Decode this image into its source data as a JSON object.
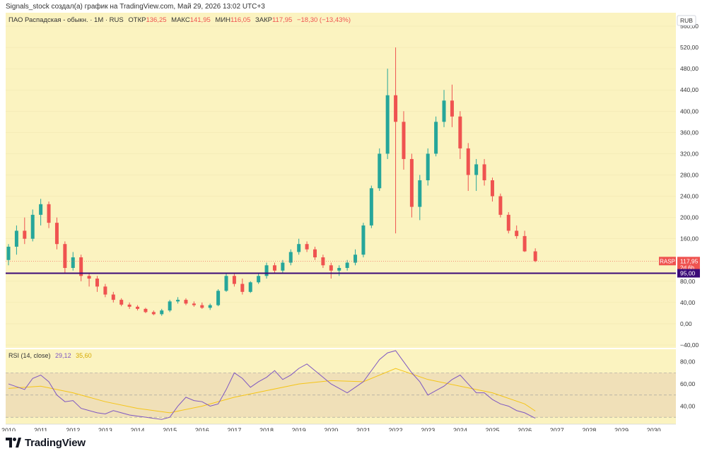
{
  "header": {
    "attribution": "Signals_stock создал(а) график на TradingView.com, Май 29, 2026 13:02 UTC+3"
  },
  "legend": {
    "symbol": "ПАО Распадская - обыкн. · 1M · RUS",
    "open_label": "ОТКР",
    "open_value": "136,25",
    "high_label": "МАКС",
    "high_value": "141,95",
    "low_label": "МИН",
    "low_value": "116,05",
    "close_label": "ЗАКР",
    "close_value": "117,95",
    "change": "−18,30 (−13,43%)"
  },
  "price_axis": {
    "currency": "RUB",
    "ticks": [
      "560,00",
      "520,00",
      "480,00",
      "440,00",
      "400,00",
      "360,00",
      "320,00",
      "280,00",
      "240,00",
      "200,00",
      "160,00",
      "80,00",
      "40,00",
      "0,00",
      "−40,00"
    ]
  },
  "badges": {
    "ticker": "RASP",
    "last_price": "117,95",
    "countdown": "2d 6h",
    "level_label": "95,00"
  },
  "rsi": {
    "label": "RSI (14, close)",
    "value": "29,12",
    "ma_value": "35,60",
    "ticks": [
      "80,00",
      "60,00",
      "40,00"
    ]
  },
  "time_axis": {
    "years": [
      "2010",
      "2011",
      "2012",
      "2013",
      "2014",
      "2015",
      "2016",
      "2017",
      "2018",
      "2019",
      "2020",
      "2021",
      "2022",
      "2023",
      "2024",
      "2025",
      "2026",
      "2027",
      "2028",
      "2029",
      "2030"
    ]
  },
  "footer": {
    "brand": "TradingView"
  },
  "colors": {
    "background": "#fbf3c0",
    "up": "#26a69a",
    "down": "#ef5350",
    "level_line": "#3b0a78",
    "rsi_line": "#7e57c2",
    "rsi_ma": "#f5c518",
    "rsi_band": "#f0e0b8"
  },
  "chart_data": [
    {
      "type": "candlestick",
      "title": "ПАО Распадская - обыкн. · 1M · RUS",
      "ylim": [
        -40,
        580
      ],
      "horizontal_line": 95,
      "x_key": "time",
      "series": [
        {
          "name": "RASP",
          "points": [
            [
              2010.0,
              120,
              150,
              110,
              145
            ],
            [
              2010.25,
              145,
              185,
              130,
              175
            ],
            [
              2010.5,
              175,
              200,
              150,
              160
            ],
            [
              2010.75,
              160,
              215,
              155,
              205
            ],
            [
              2011.0,
              205,
              235,
              185,
              225
            ],
            [
              2011.25,
              225,
              230,
              180,
              190
            ],
            [
              2011.5,
              190,
              200,
              140,
              150
            ],
            [
              2011.75,
              150,
              155,
              95,
              105
            ],
            [
              2012.0,
              105,
              135,
              100,
              125
            ],
            [
              2012.25,
              125,
              130,
              80,
              90
            ],
            [
              2012.5,
              90,
              95,
              70,
              85
            ],
            [
              2012.75,
              85,
              90,
              60,
              70
            ],
            [
              2013.0,
              70,
              75,
              50,
              55
            ],
            [
              2013.25,
              55,
              60,
              40,
              45
            ],
            [
              2013.5,
              45,
              48,
              33,
              36
            ],
            [
              2013.75,
              36,
              40,
              28,
              32
            ],
            [
              2014.0,
              32,
              35,
              25,
              28
            ],
            [
              2014.25,
              28,
              30,
              20,
              22
            ],
            [
              2014.5,
              22,
              25,
              16,
              18
            ],
            [
              2014.75,
              18,
              28,
              15,
              25
            ],
            [
              2015.0,
              25,
              45,
              22,
              42
            ],
            [
              2015.25,
              42,
              50,
              38,
              45
            ],
            [
              2015.5,
              45,
              48,
              35,
              38
            ],
            [
              2015.75,
              38,
              42,
              32,
              35
            ],
            [
              2016.0,
              35,
              40,
              28,
              30
            ],
            [
              2016.25,
              30,
              38,
              26,
              35
            ],
            [
              2016.5,
              35,
              65,
              33,
              62
            ],
            [
              2016.75,
              62,
              95,
              60,
              90
            ],
            [
              2017.0,
              90,
              95,
              70,
              75
            ],
            [
              2017.25,
              75,
              85,
              55,
              60
            ],
            [
              2017.5,
              60,
              80,
              58,
              78
            ],
            [
              2017.75,
              78,
              95,
              75,
              90
            ],
            [
              2018.0,
              90,
              115,
              85,
              110
            ],
            [
              2018.25,
              110,
              115,
              95,
              100
            ],
            [
              2018.5,
              100,
              120,
              95,
              115
            ],
            [
              2018.75,
              115,
              140,
              110,
              135
            ],
            [
              2019.0,
              135,
              160,
              130,
              150
            ],
            [
              2019.25,
              150,
              155,
              135,
              140
            ],
            [
              2019.5,
              140,
              145,
              120,
              125
            ],
            [
              2019.75,
              125,
              130,
              105,
              110
            ],
            [
              2020.0,
              110,
              115,
              85,
              100
            ],
            [
              2020.25,
              100,
              110,
              90,
              105
            ],
            [
              2020.5,
              105,
              120,
              100,
              115
            ],
            [
              2020.75,
              115,
              140,
              110,
              130
            ],
            [
              2021.0,
              130,
              190,
              125,
              185
            ],
            [
              2021.25,
              185,
              260,
              180,
              255
            ],
            [
              2021.5,
              255,
              330,
              250,
              320
            ],
            [
              2021.75,
              320,
              480,
              310,
              430
            ],
            [
              2022.0,
              430,
              520,
              170,
              380
            ],
            [
              2022.25,
              380,
              400,
              290,
              310
            ],
            [
              2022.5,
              310,
              320,
              200,
              220
            ],
            [
              2022.75,
              220,
              280,
              195,
              270
            ],
            [
              2023.0,
              270,
              330,
              260,
              320
            ],
            [
              2023.25,
              320,
              390,
              315,
              380
            ],
            [
              2023.5,
              380,
              440,
              370,
              420
            ],
            [
              2023.75,
              420,
              450,
              370,
              390
            ],
            [
              2024.0,
              390,
              400,
              310,
              330
            ],
            [
              2024.25,
              330,
              340,
              250,
              280
            ],
            [
              2024.5,
              280,
              310,
              250,
              300
            ],
            [
              2024.75,
              300,
              310,
              260,
              270
            ],
            [
              2025.0,
              270,
              275,
              230,
              240
            ],
            [
              2025.25,
              240,
              245,
              200,
              205
            ],
            [
              2025.5,
              205,
              210,
              170,
              175
            ],
            [
              2025.75,
              175,
              185,
              160,
              165
            ],
            [
              2026.0,
              165,
              175,
              135,
              136.25
            ],
            [
              2026.33,
              136.25,
              141.95,
              116.05,
              117.95
            ]
          ]
        }
      ]
    },
    {
      "type": "line",
      "title": "RSI (14, close)",
      "ylim": [
        25,
        90
      ],
      "bands": [
        30,
        50,
        70
      ],
      "series": [
        {
          "name": "RSI",
          "x": [
            2010,
            2010.5,
            2010.75,
            2011,
            2011.25,
            2011.5,
            2011.75,
            2012,
            2012.25,
            2012.5,
            2012.75,
            2013,
            2013.25,
            2013.5,
            2013.75,
            2014,
            2014.25,
            2014.5,
            2014.75,
            2015,
            2015.25,
            2015.5,
            2015.75,
            2016,
            2016.25,
            2016.5,
            2016.75,
            2017,
            2017.25,
            2017.5,
            2017.75,
            2018,
            2018.25,
            2018.5,
            2018.75,
            2019,
            2019.25,
            2019.5,
            2019.75,
            2020,
            2020.25,
            2020.5,
            2020.75,
            2021,
            2021.25,
            2021.5,
            2021.75,
            2022,
            2022.25,
            2022.5,
            2022.75,
            2023,
            2023.25,
            2023.5,
            2023.75,
            2024,
            2024.25,
            2024.5,
            2024.75,
            2025,
            2025.25,
            2025.5,
            2025.75,
            2026,
            2026.33
          ],
          "y": [
            60,
            55,
            65,
            68,
            62,
            50,
            44,
            45,
            38,
            36,
            34,
            33,
            36,
            34,
            32,
            31,
            30,
            29,
            28,
            30,
            40,
            48,
            45,
            44,
            40,
            42,
            55,
            70,
            65,
            57,
            62,
            66,
            72,
            64,
            68,
            74,
            78,
            72,
            66,
            60,
            56,
            52,
            57,
            62,
            72,
            82,
            88,
            90,
            80,
            70,
            62,
            50,
            54,
            58,
            64,
            68,
            60,
            52,
            52,
            46,
            42,
            40,
            36,
            34,
            29.12
          ]
        },
        {
          "name": "RSI MA",
          "x": [
            2010,
            2011,
            2012,
            2013,
            2014,
            2015,
            2016,
            2017,
            2018,
            2019,
            2020,
            2021,
            2022,
            2023,
            2024,
            2025,
            2026,
            2026.33
          ],
          "y": [
            56,
            58,
            52,
            44,
            38,
            34,
            40,
            48,
            54,
            60,
            63,
            62,
            74,
            64,
            58,
            52,
            42,
            35.6
          ]
        }
      ]
    }
  ]
}
